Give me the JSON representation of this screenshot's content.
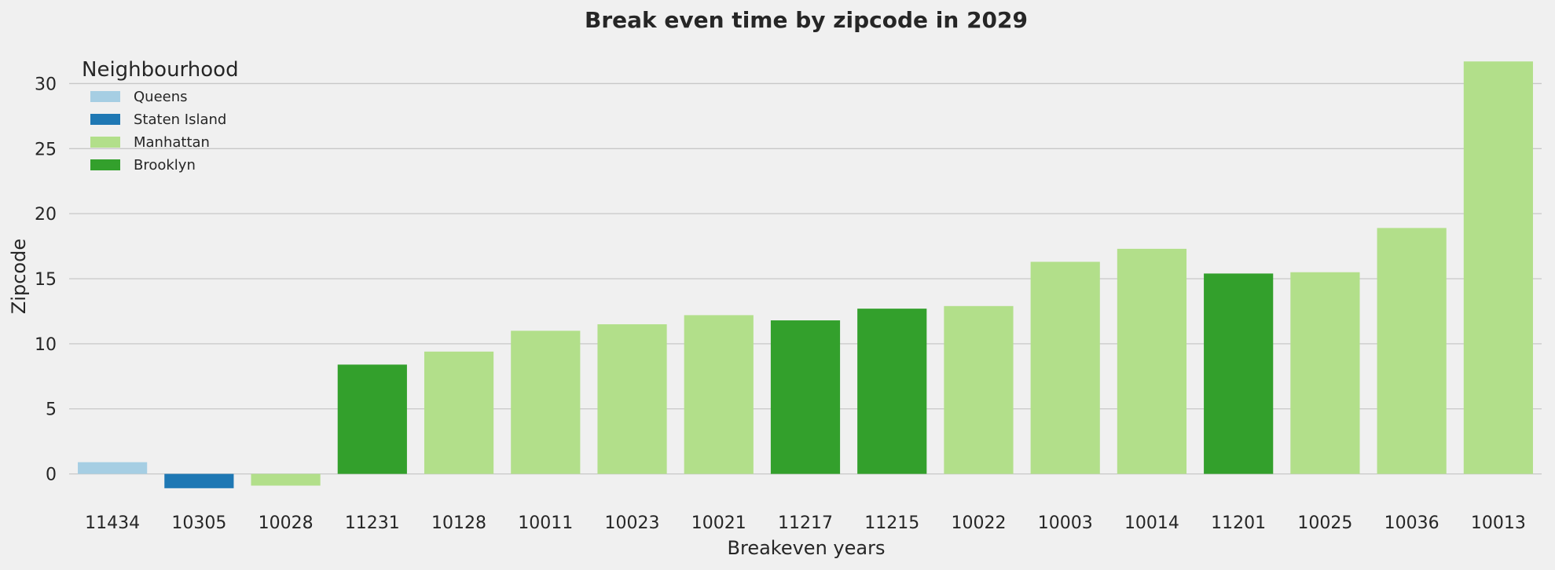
{
  "chart_data": {
    "type": "bar",
    "title": "Break even time by zipcode in 2029",
    "xlabel": "Breakeven years",
    "ylabel": "Zipcode",
    "ylim": [
      -2.8,
      32.5
    ],
    "yticks": [
      0,
      5,
      10,
      15,
      20,
      25,
      30
    ],
    "grid": true,
    "legend": {
      "title": "Neighbourhood",
      "placement": "top-left",
      "entries": [
        {
          "name": "Queens",
          "color": "#a6cee3"
        },
        {
          "name": "Staten Island",
          "color": "#1f78b4"
        },
        {
          "name": "Manhattan",
          "color": "#b2df8a"
        },
        {
          "name": "Brooklyn",
          "color": "#33a02c"
        }
      ]
    },
    "categories": [
      "11434",
      "10305",
      "10028",
      "11231",
      "10128",
      "10011",
      "10023",
      "10021",
      "11217",
      "11215",
      "10022",
      "10003",
      "10014",
      "11201",
      "10025",
      "10036",
      "10013"
    ],
    "values": [
      0.9,
      -1.1,
      -0.9,
      8.4,
      9.4,
      11.0,
      11.5,
      12.2,
      11.8,
      12.7,
      12.9,
      16.3,
      17.3,
      15.4,
      15.5,
      18.9,
      31.7
    ],
    "neighbourhoods": [
      "Queens",
      "Staten Island",
      "Manhattan",
      "Brooklyn",
      "Manhattan",
      "Manhattan",
      "Manhattan",
      "Manhattan",
      "Brooklyn",
      "Brooklyn",
      "Manhattan",
      "Manhattan",
      "Manhattan",
      "Brooklyn",
      "Manhattan",
      "Manhattan",
      "Manhattan"
    ]
  }
}
